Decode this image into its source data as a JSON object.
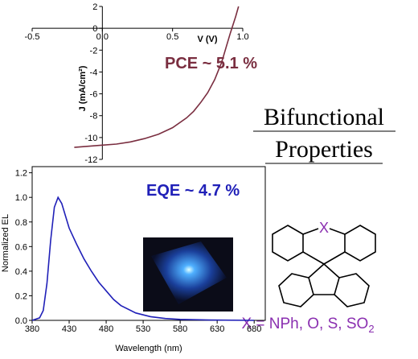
{
  "chart_data": [
    {
      "type": "line",
      "x_label": "V (V)",
      "y_label": "J (mA/cm²)",
      "annotation": "PCE ~ 5.1 %",
      "xlim": [
        -0.5,
        1.0
      ],
      "xticks": [
        -0.5,
        {
          "value": 0,
          "label": "0.0"
        },
        0.5,
        {
          "value": 1,
          "label": "1.0"
        }
      ],
      "ylim": [
        -12,
        2
      ],
      "yticks": [
        -12,
        -10,
        -8,
        -6,
        -4,
        -2,
        0,
        2
      ],
      "axes_cross_at_origin": true,
      "series": [
        {
          "color": "#7a2e40",
          "x": [
            -0.2,
            -0.1,
            0,
            0.1,
            0.2,
            0.3,
            0.4,
            0.5,
            0.6,
            0.65,
            0.7,
            0.75,
            0.8,
            0.85,
            0.88,
            0.91,
            0.93,
            0.95,
            0.97
          ],
          "values": [
            -10.9,
            -10.8,
            -10.7,
            -10.6,
            -10.4,
            -10.1,
            -9.7,
            -9.1,
            -8.2,
            -7.6,
            -6.8,
            -5.9,
            -4.7,
            -3.1,
            -1.8,
            -0.5,
            0.3,
            1.1,
            2.0
          ]
        }
      ]
    },
    {
      "type": "line",
      "x_label": "Wavelength (nm)",
      "y_label": "Normalized EL",
      "annotation": "EQE ~ 4.7 %",
      "xlim": [
        380,
        695
      ],
      "xticks": [
        380,
        430,
        480,
        530,
        580,
        630,
        680
      ],
      "ylim": [
        0,
        1.25
      ],
      "yticks": [
        {
          "value": 0,
          "label": "0.0"
        },
        0.2,
        0.4,
        0.6,
        0.8,
        {
          "value": 1,
          "label": "1.0"
        },
        1.2
      ],
      "axes_cross_at_origin": false,
      "series": [
        {
          "color": "#2020b8",
          "x": [
            380,
            390,
            395,
            400,
            405,
            410,
            415,
            420,
            425,
            430,
            440,
            450,
            460,
            470,
            480,
            490,
            500,
            520,
            540,
            560,
            580,
            620,
            680
          ],
          "values": [
            0,
            0.02,
            0.08,
            0.3,
            0.65,
            0.92,
            1.0,
            0.95,
            0.85,
            0.75,
            0.62,
            0.5,
            0.4,
            0.31,
            0.24,
            0.17,
            0.12,
            0.06,
            0.03,
            0.015,
            0.008,
            0.003,
            0
          ]
        }
      ]
    }
  ],
  "side_text": {
    "line1": "Bifunctional",
    "line2": "Properties"
  },
  "structure": {
    "atom_label": "X",
    "caption": "X = NPh, O, S, SO",
    "caption_subscript": "2"
  }
}
